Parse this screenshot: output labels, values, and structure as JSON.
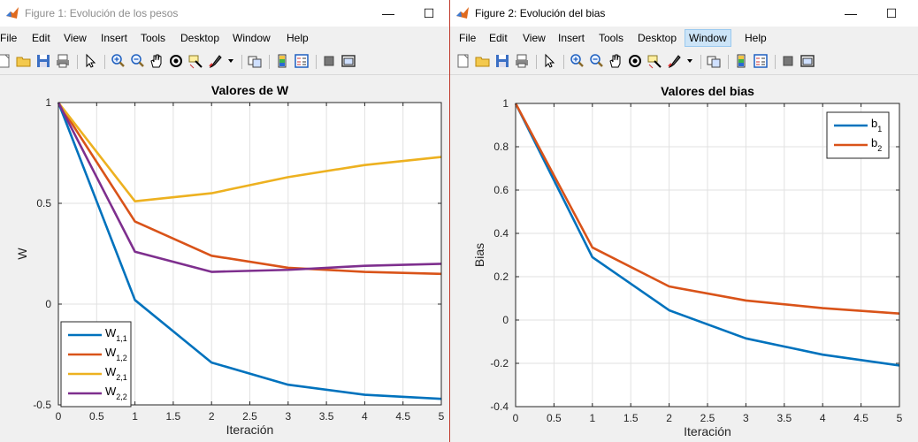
{
  "windows": [
    {
      "title": "Figure 1: Evolución de los pesos",
      "menu": [
        "File",
        "Edit",
        "View",
        "Insert",
        "Tools",
        "Desktop",
        "Window",
        "Help"
      ],
      "active_menu": -1
    },
    {
      "title": "Figure 2: Evolución del bias",
      "menu": [
        "File",
        "Edit",
        "View",
        "Insert",
        "Tools",
        "Desktop",
        "Window",
        "Help"
      ],
      "active_menu": 6
    }
  ],
  "titlebar_buttons": {
    "minimize": "—",
    "maximize": "☐"
  },
  "toolbar_icons": [
    "new-figure-icon",
    "open-file-icon",
    "save-icon",
    "print-icon",
    "|",
    "edit-plot-arrow-icon",
    "|",
    "zoom-in-icon",
    "zoom-out-icon",
    "pan-hand-icon",
    "rotate-3d-icon",
    "data-cursor-icon",
    "brush-icon",
    "brush-dropdown-icon",
    "|",
    "link-plot-icon",
    "|",
    "colorbar-icon",
    "legend-icon",
    "|",
    "hide-plot-tools-icon",
    "show-plot-tools-icon"
  ],
  "chart_data": [
    {
      "type": "line",
      "title": "Valores de W",
      "xlabel": "Iteración",
      "ylabel": "W",
      "xlim": [
        0,
        5
      ],
      "ylim": [
        -0.5,
        1
      ],
      "xticks": [
        0,
        0.5,
        1,
        1.5,
        2,
        2.5,
        3,
        3.5,
        4,
        4.5,
        5
      ],
      "yticks": [
        -0.5,
        0,
        0.5,
        1
      ],
      "grid": true,
      "legend_position": "bottom-left",
      "x": [
        0,
        1,
        2,
        3,
        4,
        5
      ],
      "series": [
        {
          "name": "W",
          "sub": "1,1",
          "color": "#0072bd",
          "values": [
            1,
            0.02,
            -0.29,
            -0.4,
            -0.45,
            -0.47
          ]
        },
        {
          "name": "W",
          "sub": "1,2",
          "color": "#d95319",
          "values": [
            1,
            0.41,
            0.24,
            0.18,
            0.16,
            0.15
          ]
        },
        {
          "name": "W",
          "sub": "2,1",
          "color": "#edb120",
          "values": [
            1,
            0.51,
            0.55,
            0.63,
            0.69,
            0.73
          ]
        },
        {
          "name": "W",
          "sub": "2,2",
          "color": "#7e2f8e",
          "values": [
            1,
            0.26,
            0.16,
            0.17,
            0.19,
            0.2
          ]
        }
      ]
    },
    {
      "type": "line",
      "title": "Valores del bias",
      "xlabel": "Iteración",
      "ylabel": "Bias",
      "xlim": [
        0,
        5
      ],
      "ylim": [
        -0.4,
        1
      ],
      "xticks": [
        0,
        0.5,
        1,
        1.5,
        2,
        2.5,
        3,
        3.5,
        4,
        4.5,
        5
      ],
      "yticks": [
        -0.4,
        -0.2,
        0,
        0.2,
        0.4,
        0.6,
        0.8,
        1
      ],
      "grid": true,
      "legend_position": "top-right",
      "x": [
        0,
        1,
        2,
        3,
        4,
        5
      ],
      "series": [
        {
          "name": "b",
          "sub": "1",
          "color": "#0072bd",
          "values": [
            1,
            0.29,
            0.045,
            -0.085,
            -0.16,
            -0.21
          ]
        },
        {
          "name": "b",
          "sub": "2",
          "color": "#d95319",
          "values": [
            1,
            0.335,
            0.155,
            0.09,
            0.055,
            0.03
          ]
        }
      ]
    }
  ]
}
